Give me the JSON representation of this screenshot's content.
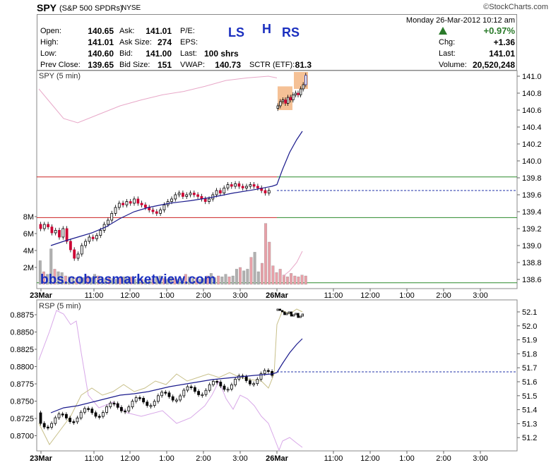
{
  "header": {
    "symbol": "SPY",
    "name": "(S&P 500 SPDRs)",
    "exchange": "NYSE",
    "copyright": "©StockCharts.com"
  },
  "quote": {
    "open_label": "Open:",
    "open": "140.65",
    "high_label": "High:",
    "high": "141.01",
    "low_label": "Low:",
    "low": "140.60",
    "prev_label": "Prev Close:",
    "prev": "139.65",
    "ask_label": "Ask:",
    "ask": "141.01",
    "asksize_label": "Ask Size:",
    "asksize": "274",
    "bid_label": "Bid:",
    "bid": "141.00",
    "bidsize_label": "Bid Size:",
    "bidsize": "151",
    "pe_label": "P/E:",
    "eps_label": "EPS:",
    "last_label": "Last:",
    "last_shares": "100 shrs",
    "vwap_label": "VWAP:",
    "vwap": "140.73",
    "sctr_label": "SCTR (ETF):",
    "sctr": "81.3",
    "date": "Monday  26-Mar-2012  10:12 am",
    "change_pct": "+0.97%",
    "chg_label": "Chg:",
    "chg": "+1.36",
    "last2_label": "Last:",
    "last2": "141.01",
    "volume_label": "Volume:",
    "volume": "20,520,248"
  },
  "annotations": {
    "ls": "LS",
    "h": "H",
    "rs": "RS",
    "watermark": "bbs.cobrasmarketview.com"
  },
  "colors": {
    "up": "#000000",
    "down": "#cc0033",
    "ma_fast": "#1a1a8c",
    "ma_pink": "#e8a8c8",
    "orange": "#f2b27c",
    "vol": "#b0b0b0",
    "vol_red": "#e8a0a8",
    "green": "#2a8a2a",
    "red": "#cc2222",
    "blue_dash": "#2233aa"
  },
  "chart_data": [
    {
      "type": "candlestick",
      "title": "SPY (5 min)",
      "ylim": [
        138.5,
        141.1
      ],
      "y_ticks": [
        "141.0",
        "140.8",
        "140.6",
        "140.4",
        "140.2",
        "140.0",
        "139.8",
        "139.6",
        "139.4",
        "139.2",
        "139.0",
        "138.8",
        "138.6"
      ],
      "volume_ticks": [
        "8M",
        "6M",
        "4M",
        "2M"
      ],
      "x_ticks": [
        "23Mar",
        "11:00",
        "12:00",
        "1:00",
        "2:00",
        "3:00",
        "26Mar",
        "11:00",
        "12:00",
        "1:00",
        "2:00",
        "3:00"
      ],
      "reference_lines": {
        "red_upper": 139.81,
        "green_upper": 139.81,
        "red_lower": 139.33,
        "green_lower": 139.33,
        "green_bottom": 138.56,
        "blue_dash": 139.65
      },
      "closes_day1": [
        139.2,
        139.25,
        139.22,
        139.15,
        139.18,
        139.1,
        139.2,
        139.05,
        138.95,
        138.85,
        138.9,
        139.0,
        139.05,
        139.1,
        139.08,
        139.12,
        139.18,
        139.25,
        139.3,
        139.38,
        139.45,
        139.5,
        139.48,
        139.52,
        139.5,
        139.55,
        139.5,
        139.48,
        139.45,
        139.42,
        139.4,
        139.38,
        139.42,
        139.48,
        139.52,
        139.55,
        139.6,
        139.62,
        139.58,
        139.6,
        139.62,
        139.6,
        139.58,
        139.55,
        139.52,
        139.55,
        139.6,
        139.65,
        139.62,
        139.68,
        139.72,
        139.7,
        139.73,
        139.7,
        139.68,
        139.7,
        139.72,
        139.7,
        139.68,
        139.65,
        139.62,
        139.65
      ],
      "closes_day2": [
        140.65,
        140.7,
        140.72,
        140.68,
        140.75,
        140.72,
        140.78,
        140.8,
        140.78,
        140.85,
        140.9,
        141.01
      ],
      "volume": [
        2.8,
        1.5,
        1.2,
        4.2,
        1.8,
        1.5,
        1.4,
        1.0,
        0.9,
        0.9,
        0.8,
        0.8,
        0.8,
        1.0,
        0.8,
        1.2,
        1.0,
        0.8,
        0.7,
        0.9,
        0.7,
        0.6,
        0.8,
        0.9,
        0.7,
        0.9,
        0.6,
        0.7,
        0.6,
        0.5,
        0.6,
        0.7,
        0.9,
        1.0,
        0.7,
        0.6,
        0.8,
        0.7,
        0.6,
        0.7,
        1.2,
        0.9,
        0.7,
        0.8,
        0.6,
        0.7,
        1.0,
        1.3,
        0.8,
        1.0,
        0.9,
        1.2,
        0.9,
        1.0,
        1.8,
        2.0,
        1.6,
        1.8,
        3.2,
        3.8,
        1.5,
        2.5,
        7.2,
        5.0,
        2.2,
        1.4,
        1.8,
        1.1,
        0.9,
        1.3,
        1.0,
        0.9,
        1.1,
        1.0
      ]
    },
    {
      "type": "line",
      "title": "RSP (5 min)",
      "left_ticks": [
        "0.8875",
        "0.8850",
        "0.8825",
        "0.8800",
        "0.8775",
        "0.8750",
        "0.8725",
        "0.8700"
      ],
      "right_ticks": [
        "52.1",
        "52.0",
        "51.9",
        "51.8",
        "51.7",
        "51.6",
        "51.5",
        "51.4",
        "51.3",
        "51.2"
      ],
      "x_ticks": [
        "23Mar",
        "11:00",
        "12:00",
        "1:00",
        "2:00",
        "3:00",
        "26Mar",
        "11:00",
        "12:00",
        "1:00",
        "2:00",
        "3:00"
      ]
    }
  ]
}
